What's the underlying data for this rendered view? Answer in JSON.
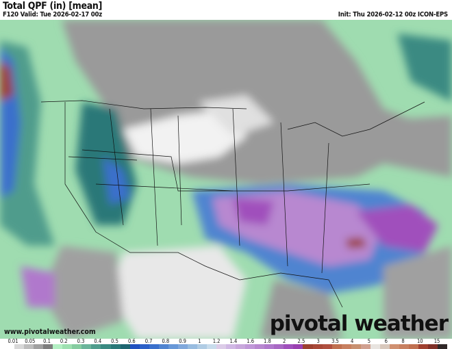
{
  "header": {
    "title": "Total QPF (in) [mean]",
    "valid": "F120 Valid: Tue 2026-02-17 00z",
    "init": "Init: Thu 2026-02-12 00z ICON-EPS"
  },
  "footer": {
    "website": "www.pivotalweather.com",
    "logo": "pivotal weather"
  },
  "colorbar": {
    "unit": "in",
    "ticks": [
      "0.01",
      "0.05",
      "0.1",
      "0.2",
      "0.3",
      "0.4",
      "0.5",
      "0.6",
      "0.7",
      "0.8",
      "0.9",
      "1",
      "1.2",
      "1.4",
      "1.6",
      "1.8",
      "2",
      "2.5",
      "3",
      "3.5",
      "4",
      "5",
      "6",
      "8",
      "10",
      "15"
    ],
    "colors": [
      "#ffffff",
      "#d8d8d8",
      "#bdbdbd",
      "#a0a0a0",
      "#7e7e7e",
      "#b4f0c4",
      "#9ee0b0",
      "#86cca0",
      "#6bb49a",
      "#4f9c8c",
      "#3a8a82",
      "#2a7878",
      "#1e6670",
      "#2050c0",
      "#2c60c8",
      "#3a70cc",
      "#5084d0",
      "#6898d8",
      "#80a8dc",
      "#98bce0",
      "#b0cce4",
      "#c8dcec",
      "#dccce8",
      "#d0b8e4",
      "#c8a8dc",
      "#c098d8",
      "#b888d0",
      "#b078cc",
      "#a868c4",
      "#a050bc",
      "#9a40b0",
      "#9c4030",
      "#a84838",
      "#b05040",
      "#c07050",
      "#c88060",
      "#c89070",
      "#d0a090",
      "#e8e4e0",
      "#d8c8bc",
      "#d09070",
      "#c88060",
      "#c07050",
      "#a04030",
      "#803028",
      "#302828"
    ]
  },
  "map": {
    "region": "Continental United States"
  }
}
